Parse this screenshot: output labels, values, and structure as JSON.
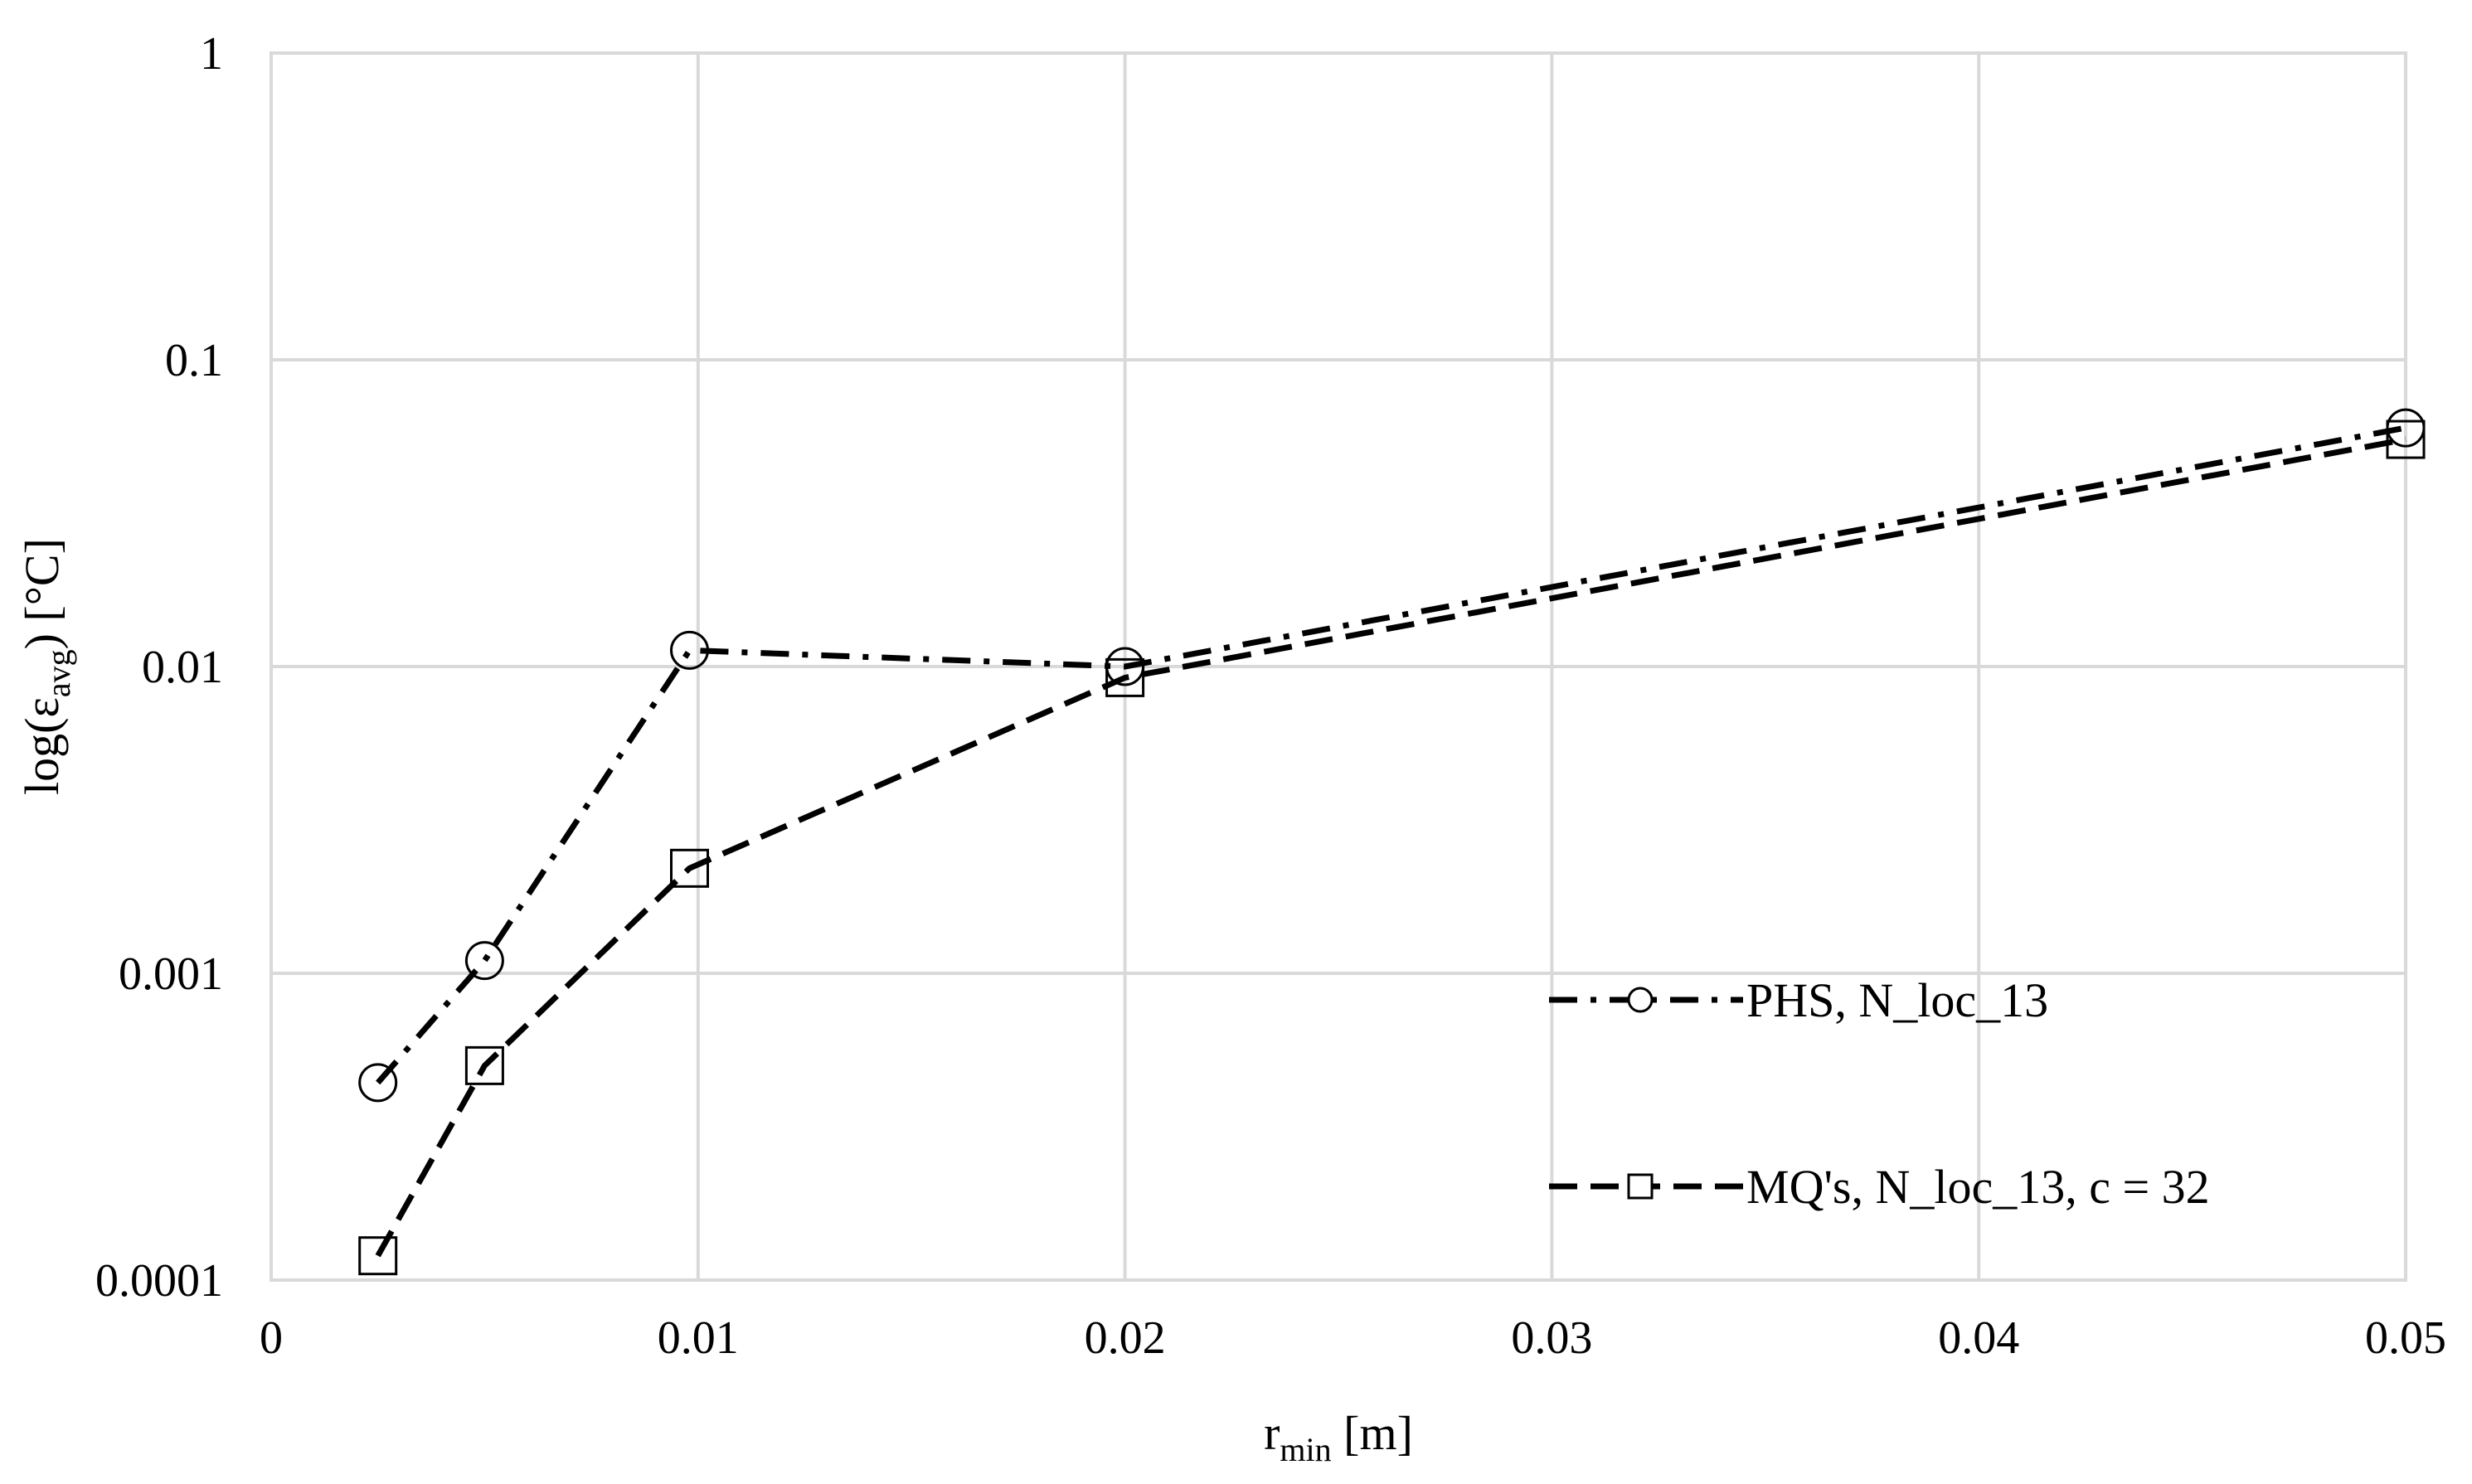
{
  "chart_data": {
    "type": "line",
    "title": "",
    "xlabel": {
      "main": "r",
      "sub": "min",
      "suffix": " [m]"
    },
    "ylabel": {
      "prefix": "log(ε",
      "sub": "avg",
      "suffix": ") [°C]"
    },
    "x_ticks": [
      "0",
      "0.01",
      "0.02",
      "0.03",
      "0.04",
      "0.05"
    ],
    "y_ticks": [
      "0.0001",
      "0.001",
      "0.01",
      "0.1",
      "1"
    ],
    "xlim": [
      0,
      0.05
    ],
    "ylim": [
      0.0001,
      1
    ],
    "y_scale": "log",
    "grid": true,
    "legend_position": "right-lower",
    "series": [
      {
        "name": "PHS, N_loc_13",
        "line_style": "dash-dot",
        "marker": "circle",
        "color": "#000000",
        "x": [
          0.0025,
          0.005,
          0.0098,
          0.02,
          0.05
        ],
        "y": [
          0.00044,
          0.0011,
          0.0113,
          0.01,
          0.06
        ]
      },
      {
        "name": "MQ's, N_loc_13, c = 32",
        "line_style": "dash",
        "marker": "square",
        "color": "#000000",
        "x": [
          0.0025,
          0.005,
          0.0098,
          0.02,
          0.05
        ],
        "y": [
          0.00012,
          0.0005,
          0.0022,
          0.0092,
          0.055
        ]
      }
    ]
  }
}
